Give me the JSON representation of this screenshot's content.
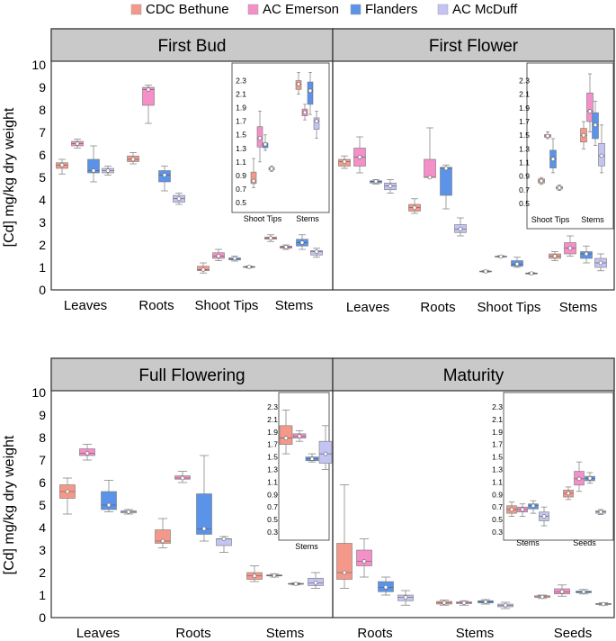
{
  "legend": [
    {
      "name": "CDC Bethune",
      "color": "#f4998a"
    },
    {
      "name": "AC Emerson",
      "color": "#f48fc8"
    },
    {
      "name": "Flanders",
      "color": "#5b93e8"
    },
    {
      "name": "AC McDuff",
      "color": "#c4c4f4"
    }
  ],
  "colors": {
    "panel_header": "#c9c9c9",
    "whisker": "#888888",
    "frame": "#333333"
  },
  "chart_data": [
    {
      "type": "box",
      "title": "First Bud",
      "ylabel": "[Cd] mg/kg dry weight",
      "ylim": [
        0,
        10
      ],
      "yticks": [
        0,
        1,
        2,
        3,
        4,
        5,
        6,
        7,
        8,
        9,
        10
      ],
      "categories": [
        "Leaves",
        "Roots",
        "Shoot Tips",
        "Stems"
      ],
      "series": [
        {
          "name": "CDC Bethune",
          "boxes": [
            [
              5.15,
              5.4,
              5.55,
              5.65,
              5.8
            ],
            [
              5.6,
              5.7,
              5.8,
              5.95,
              6.1
            ],
            [
              0.75,
              0.85,
              0.9,
              1.05,
              1.2
            ],
            [
              2.15,
              2.25,
              2.3,
              2.35,
              2.45
            ]
          ]
        },
        {
          "name": "AC Emerson",
          "boxes": [
            [
              6.3,
              6.4,
              6.5,
              6.6,
              6.7
            ],
            [
              7.4,
              8.2,
              8.9,
              9.0,
              9.1
            ],
            [
              1.3,
              1.4,
              1.5,
              1.65,
              1.8
            ],
            [
              1.8,
              1.85,
              1.9,
              1.95,
              2.0
            ]
          ]
        },
        {
          "name": "Flanders",
          "boxes": [
            [
              4.8,
              5.2,
              5.3,
              5.8,
              6.4
            ],
            [
              4.4,
              4.8,
              5.1,
              5.3,
              5.5
            ],
            [
              1.28,
              1.33,
              1.4,
              1.42,
              1.5
            ],
            [
              1.8,
              1.95,
              2.1,
              2.25,
              2.45
            ]
          ]
        },
        {
          "name": "AC McDuff",
          "boxes": [
            [
              5.1,
              5.2,
              5.3,
              5.4,
              5.5
            ],
            [
              3.8,
              3.9,
              4.05,
              4.2,
              4.3
            ],
            [
              0.98,
              1.0,
              1.02,
              1.04,
              1.06
            ],
            [
              1.45,
              1.55,
              1.7,
              1.75,
              1.85
            ]
          ]
        }
      ],
      "inset": {
        "ylim": [
          0.5,
          2.4
        ],
        "yticks": [
          "0.5",
          "0.7",
          "0.9",
          "1.1",
          "1.3",
          "1.5",
          "1.7",
          "1.9",
          "2.1",
          "2.3"
        ],
        "categories": [
          "Shoot Tips",
          "Stems"
        ],
        "series": [
          {
            "name": "CDC Bethune",
            "boxes": [
              [
                0.72,
                0.78,
                0.82,
                0.95,
                1.15
              ],
              [
                2.1,
                2.17,
                2.25,
                2.3,
                2.42
              ]
            ]
          },
          {
            "name": "AC Emerson",
            "boxes": [
              [
                1.1,
                1.32,
                1.45,
                1.62,
                1.85
              ],
              [
                1.72,
                1.78,
                1.83,
                1.88,
                1.95
              ]
            ]
          },
          {
            "name": "Flanders",
            "boxes": [
              [
                1.27,
                1.31,
                1.36,
                1.38,
                1.5
              ],
              [
                1.8,
                1.95,
                2.15,
                2.28,
                2.42
              ]
            ]
          },
          {
            "name": "AC McDuff",
            "boxes": [
              [
                0.96,
                0.98,
                1.0,
                1.02,
                1.04
              ],
              [
                1.45,
                1.58,
                1.7,
                1.75,
                1.85
              ]
            ]
          }
        ]
      }
    },
    {
      "type": "box",
      "title": "First Flower",
      "ylim": [
        0,
        10
      ],
      "categories": [
        "Leaves",
        "Roots",
        "Shoot Tips",
        "Stems"
      ],
      "series": [
        {
          "name": "CDC Bethune",
          "boxes": [
            [
              5.4,
              5.5,
              5.7,
              5.8,
              5.95
            ],
            [
              3.4,
              3.5,
              3.65,
              3.8,
              4.05
            ],
            [
              0.78,
              0.8,
              0.82,
              0.84,
              0.87
            ],
            [
              1.3,
              1.4,
              1.5,
              1.6,
              1.7
            ]
          ]
        },
        {
          "name": "AC Emerson",
          "boxes": [
            [
              5.2,
              5.5,
              5.9,
              6.3,
              6.8
            ],
            [
              5.0,
              5.0,
              5.0,
              5.8,
              7.2
            ],
            [
              1.45,
              1.47,
              1.48,
              1.5,
              1.52
            ],
            [
              1.5,
              1.6,
              1.85,
              2.1,
              2.4
            ]
          ]
        },
        {
          "name": "Flanders",
          "boxes": [
            [
              4.7,
              4.75,
              4.82,
              4.85,
              4.9
            ],
            [
              3.6,
              4.2,
              5.4,
              5.45,
              5.55
            ],
            [
              1.0,
              1.05,
              1.15,
              1.3,
              1.45
            ],
            [
              1.2,
              1.4,
              1.6,
              1.7,
              1.95
            ]
          ]
        },
        {
          "name": "AC McDuff",
          "boxes": [
            [
              4.3,
              4.45,
              4.62,
              4.75,
              4.9
            ],
            [
              2.4,
              2.55,
              2.7,
              2.9,
              3.2
            ],
            [
              0.7,
              0.72,
              0.73,
              0.75,
              0.77
            ],
            [
              0.85,
              1.0,
              1.2,
              1.4,
              1.6
            ]
          ]
        }
      ],
      "inset": {
        "ylim": [
          0.5,
          2.4
        ],
        "yticks": [
          "0.5",
          "0.7",
          "0.9",
          "1.1",
          "1.3",
          "1.5",
          "1.7",
          "1.9",
          "2.1",
          "2.3"
        ],
        "categories": [
          "Shoot Tips",
          "Stems"
        ],
        "series": [
          {
            "name": "CDC Bethune",
            "boxes": [
              [
                0.78,
                0.8,
                0.83,
                0.86,
                0.88
              ],
              [
                1.3,
                1.4,
                1.5,
                1.6,
                1.7
              ]
            ]
          },
          {
            "name": "AC Emerson",
            "boxes": [
              [
                1.45,
                1.47,
                1.49,
                1.51,
                1.55
              ],
              [
                1.55,
                1.7,
                1.85,
                2.12,
                2.4
              ]
            ]
          },
          {
            "name": "Flanders",
            "boxes": [
              [
                0.95,
                1.02,
                1.15,
                1.28,
                1.45
              ],
              [
                1.35,
                1.45,
                1.65,
                1.83,
                2.0
              ]
            ]
          },
          {
            "name": "AC McDuff",
            "boxes": [
              [
                0.69,
                0.71,
                0.73,
                0.75,
                0.77
              ],
              [
                0.95,
                1.05,
                1.2,
                1.38,
                1.65
              ]
            ]
          }
        ]
      }
    },
    {
      "type": "box",
      "title": "Full Flowering",
      "ylabel": "[Cd] mg/kg dry weight",
      "ylim": [
        0,
        10
      ],
      "yticks": [
        0,
        1,
        2,
        3,
        4,
        5,
        6,
        7,
        8,
        9,
        10
      ],
      "categories": [
        "Leaves",
        "Roots",
        "Stems"
      ],
      "series": [
        {
          "name": "CDC Bethune",
          "boxes": [
            [
              4.6,
              5.3,
              5.6,
              5.9,
              6.2
            ],
            [
              3.1,
              3.3,
              3.4,
              3.9,
              4.4
            ],
            [
              1.6,
              1.7,
              1.85,
              2.0,
              2.3
            ]
          ]
        },
        {
          "name": "AC Emerson",
          "boxes": [
            [
              7.0,
              7.2,
              7.3,
              7.5,
              7.7
            ],
            [
              6.0,
              6.15,
              6.2,
              6.3,
              6.5
            ],
            [
              1.8,
              1.85,
              1.87,
              1.9,
              1.95
            ]
          ]
        },
        {
          "name": "Flanders",
          "boxes": [
            [
              4.7,
              4.8,
              5.0,
              5.6,
              6.1
            ],
            [
              3.4,
              3.7,
              3.95,
              5.5,
              7.2
            ],
            [
              1.45,
              1.48,
              1.5,
              1.52,
              1.55
            ]
          ]
        },
        {
          "name": "AC McDuff",
          "boxes": [
            [
              4.6,
              4.65,
              4.7,
              4.75,
              4.8
            ],
            [
              2.9,
              3.2,
              3.5,
              3.5,
              3.6
            ],
            [
              1.3,
              1.42,
              1.55,
              1.75,
              2.0
            ]
          ]
        }
      ],
      "inset": {
        "ylim": [
          0.3,
          2.4
        ],
        "yticks": [
          "0.3",
          "0.5",
          "0.7",
          "0.9",
          "1.1",
          "1.3",
          "1.5",
          "1.7",
          "1.9",
          "2.1",
          "2.3"
        ],
        "categories": [
          "Stems"
        ],
        "series": [
          {
            "name": "CDC Bethune",
            "boxes": [
              [
                1.55,
                1.7,
                1.8,
                2.0,
                2.25
              ]
            ]
          },
          {
            "name": "AC Emerson",
            "boxes": [
              [
                1.75,
                1.8,
                1.83,
                1.87,
                1.92
              ]
            ]
          },
          {
            "name": "Flanders",
            "boxes": [
              [
                1.42,
                1.44,
                1.47,
                1.5,
                1.55
              ]
            ]
          },
          {
            "name": "AC McDuff",
            "boxes": [
              [
                1.3,
                1.4,
                1.55,
                1.75,
                2.0
              ]
            ]
          }
        ]
      }
    },
    {
      "type": "box",
      "title": "Maturity",
      "ylim": [
        0,
        10
      ],
      "categories": [
        "Roots",
        "Stems",
        "Seeds"
      ],
      "series": [
        {
          "name": "CDC Bethune",
          "boxes": [
            [
              1.3,
              1.7,
              2.0,
              3.3,
              5.9
            ],
            [
              0.55,
              0.6,
              0.66,
              0.72,
              0.78
            ],
            [
              0.85,
              0.9,
              0.92,
              0.97,
              1.0
            ]
          ]
        },
        {
          "name": "AC Emerson",
          "boxes": [
            [
              1.8,
              2.3,
              2.5,
              3.0,
              3.5
            ],
            [
              0.55,
              0.62,
              0.66,
              0.7,
              0.75
            ],
            [
              0.95,
              1.05,
              1.15,
              1.28,
              1.45
            ]
          ]
        },
        {
          "name": "Flanders",
          "boxes": [
            [
              1.0,
              1.15,
              1.35,
              1.6,
              1.8
            ],
            [
              0.6,
              0.65,
              0.7,
              0.75,
              0.8
            ],
            [
              1.05,
              1.1,
              1.15,
              1.18,
              1.25
            ]
          ]
        },
        {
          "name": "AC McDuff",
          "boxes": [
            [
              0.55,
              0.75,
              0.9,
              1.0,
              1.2
            ],
            [
              0.4,
              0.48,
              0.55,
              0.6,
              0.68
            ],
            [
              0.55,
              0.58,
              0.6,
              0.63,
              0.66
            ]
          ]
        }
      ],
      "inset": {
        "ylim": [
          0.3,
          2.4
        ],
        "yticks": [
          "0.3",
          "0.5",
          "0.7",
          "0.9",
          "1.1",
          "1.3",
          "1.5",
          "1.7",
          "1.9",
          "2.1",
          "2.3"
        ],
        "categories": [
          "Stems",
          "Seeds"
        ],
        "series": [
          {
            "name": "CDC Bethune",
            "boxes": [
              [
                0.55,
                0.6,
                0.66,
                0.72,
                0.78
              ],
              [
                0.82,
                0.86,
                0.92,
                0.97,
                1.02
              ]
            ]
          },
          {
            "name": "AC Emerson",
            "boxes": [
              [
                0.55,
                0.62,
                0.66,
                0.7,
                0.75
              ],
              [
                0.95,
                1.05,
                1.15,
                1.27,
                1.42
              ]
            ]
          },
          {
            "name": "Flanders",
            "boxes": [
              [
                0.6,
                0.67,
                0.72,
                0.75,
                0.8
              ],
              [
                1.08,
                1.12,
                1.16,
                1.19,
                1.25
              ]
            ]
          },
          {
            "name": "AC McDuff",
            "boxes": [
              [
                0.4,
                0.48,
                0.55,
                0.62,
                0.7
              ],
              [
                0.58,
                0.6,
                0.62,
                0.64,
                0.66
              ]
            ]
          }
        ]
      }
    }
  ]
}
